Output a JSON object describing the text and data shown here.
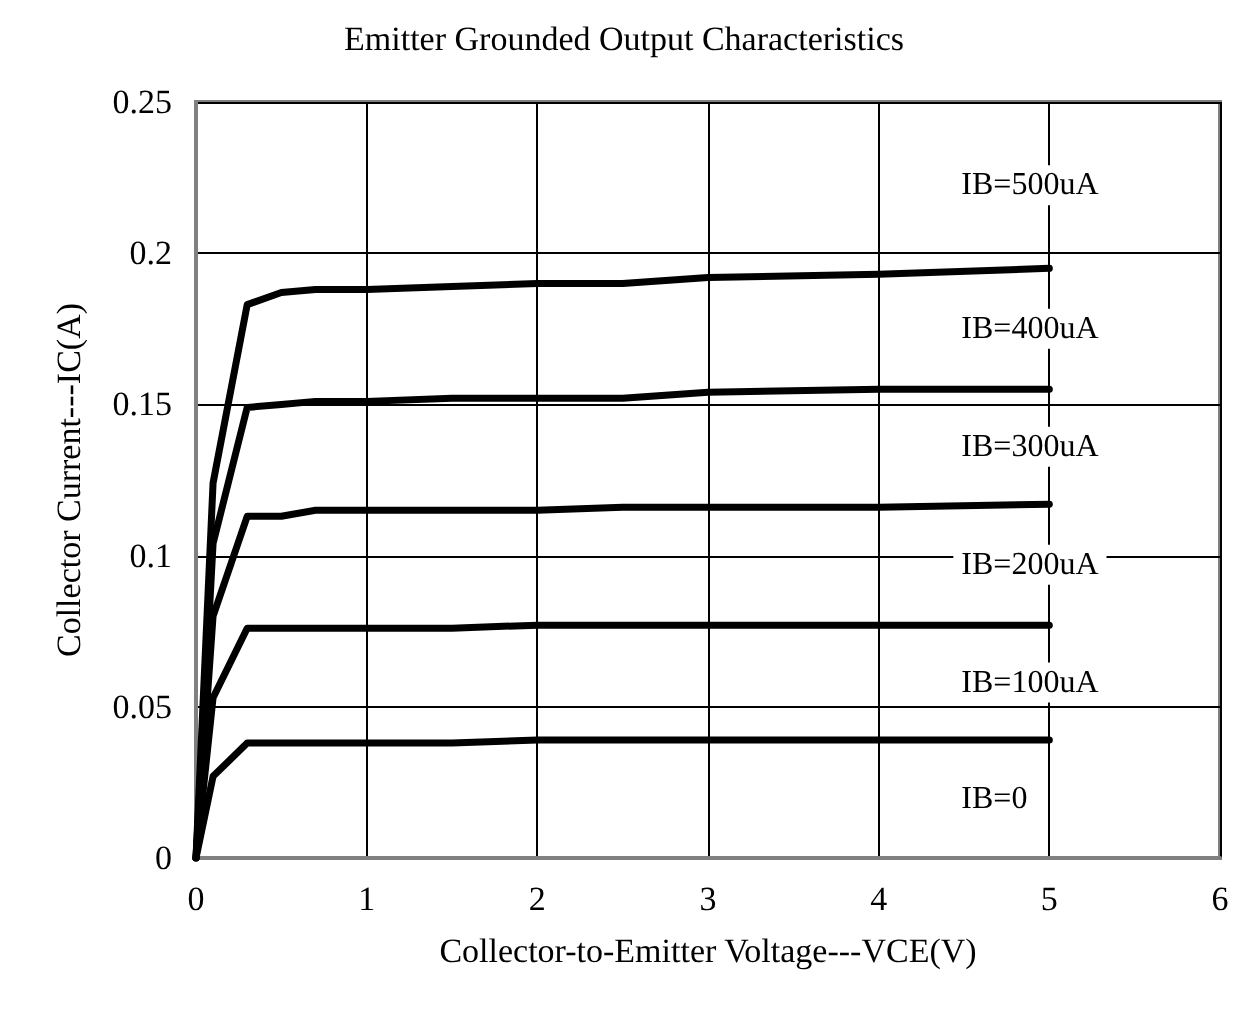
{
  "chart_data": {
    "type": "line",
    "title": "Emitter Grounded Output Characteristics",
    "xlabel": "Collector-to-Emitter Voltage---VCE(V)",
    "ylabel": "Collector Current---IC(A)",
    "xlim": [
      0,
      6
    ],
    "xticks": [
      0,
      1,
      2,
      3,
      4,
      5,
      6
    ],
    "ylim": [
      0,
      0.25
    ],
    "yticks": [
      0,
      0.05,
      0.1,
      0.15,
      0.2,
      0.25
    ],
    "grid": true,
    "marker": "none",
    "line_style": "solid",
    "series": [
      {
        "color": "#000000",
        "x": [
          0,
          0.1,
          0.3,
          0.5,
          0.7,
          1,
          1.5,
          2,
          2.5,
          3,
          4,
          5
        ],
        "values": [
          0,
          0.124,
          0.183,
          0.187,
          0.188,
          0.188,
          0.189,
          0.19,
          0.19,
          0.192,
          0.193,
          0.195
        ]
      },
      {
        "color": "#000000",
        "x": [
          0,
          0.1,
          0.3,
          0.5,
          0.7,
          1,
          1.5,
          2,
          2.5,
          3,
          4,
          5
        ],
        "values": [
          0,
          0.104,
          0.149,
          0.15,
          0.151,
          0.151,
          0.152,
          0.152,
          0.152,
          0.154,
          0.155,
          0.155
        ]
      },
      {
        "color": "#000000",
        "x": [
          0,
          0.1,
          0.3,
          0.5,
          0.7,
          1,
          1.5,
          2,
          2.5,
          3,
          4,
          5
        ],
        "values": [
          0,
          0.08,
          0.113,
          0.113,
          0.115,
          0.115,
          0.115,
          0.115,
          0.116,
          0.116,
          0.116,
          0.117
        ]
      },
      {
        "color": "#000000",
        "x": [
          0,
          0.1,
          0.3,
          0.5,
          0.7,
          1,
          1.5,
          2,
          2.5,
          3,
          4,
          5
        ],
        "values": [
          0,
          0.053,
          0.076,
          0.076,
          0.076,
          0.076,
          0.076,
          0.077,
          0.077,
          0.077,
          0.077,
          0.077
        ]
      },
      {
        "color": "#000000",
        "x": [
          0,
          0.1,
          0.3,
          0.5,
          0.7,
          1,
          1.5,
          2,
          2.5,
          3,
          4,
          5
        ],
        "values": [
          0,
          0.027,
          0.038,
          0.038,
          0.038,
          0.038,
          0.038,
          0.039,
          0.039,
          0.039,
          0.039,
          0.039
        ]
      }
    ],
    "annotations": [
      "IB=500uA",
      "IB=400uA",
      "IB=300uA",
      "IB=200uA",
      "IB=100uA",
      "IB=0"
    ]
  }
}
